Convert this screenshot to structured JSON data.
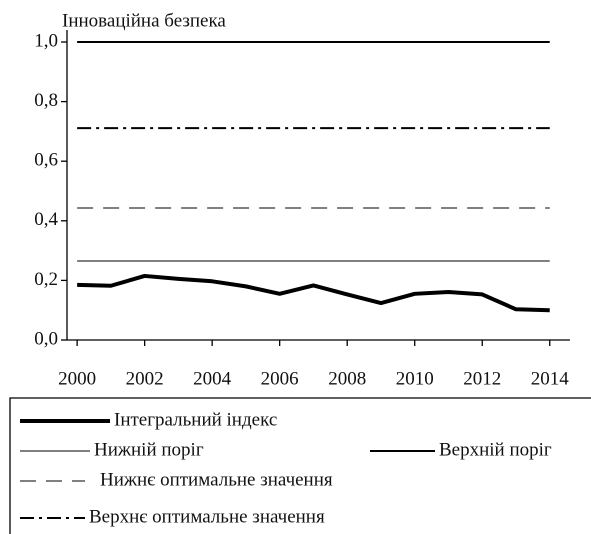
{
  "chart_data": {
    "type": "line",
    "ylabel": "Інноваційна безпека",
    "x": [
      2000,
      2001,
      2002,
      2003,
      2004,
      2005,
      2006,
      2007,
      2008,
      2009,
      2010,
      2011,
      2012,
      2013,
      2014
    ],
    "xlim": [
      1999.7,
      2014.6
    ],
    "xticks": [
      2000,
      2002,
      2004,
      2006,
      2008,
      2010,
      2012,
      2014
    ],
    "ylim": [
      0,
      1
    ],
    "yticks": [
      {
        "value": 0,
        "label": "0,0"
      },
      {
        "value": 0.2,
        "label": "0,2"
      },
      {
        "value": 0.4,
        "label": "0,4"
      },
      {
        "value": 0.6,
        "label": "0,6"
      },
      {
        "value": 0.8,
        "label": "0,8"
      },
      {
        "value": 1,
        "label": "1,0"
      }
    ],
    "series": [
      {
        "name": "Інтегральний індекс",
        "color": "#000000",
        "style": "solid",
        "linewidth": 4,
        "values": [
          0.185,
          0.182,
          0.215,
          0.205,
          0.197,
          0.18,
          0.155,
          0.183,
          0.153,
          0.124,
          0.155,
          0.161,
          0.153,
          0.103,
          0.1
        ]
      },
      {
        "name": "Нижній поріг",
        "color": "#808080",
        "style": "solid",
        "linewidth": 2,
        "values": [
          0.265,
          0.265,
          0.265,
          0.265,
          0.265,
          0.265,
          0.265,
          0.265,
          0.265,
          0.265,
          0.265,
          0.265,
          0.265,
          0.265,
          0.265
        ]
      },
      {
        "name": "Верхній поріг",
        "color": "#000000",
        "style": "solid",
        "linewidth": 2,
        "values": [
          1,
          1,
          1,
          1,
          1,
          1,
          1,
          1,
          1,
          1,
          1,
          1,
          1,
          1,
          1
        ]
      },
      {
        "name": "Нижнє оптимальне значення",
        "color": "#808080",
        "style": "dashed",
        "linewidth": 2,
        "values": [
          0.443,
          0.443,
          0.443,
          0.443,
          0.443,
          0.443,
          0.443,
          0.443,
          0.443,
          0.443,
          0.443,
          0.443,
          0.443,
          0.443,
          0.443
        ]
      },
      {
        "name": "Верхнє оптимальне значення",
        "color": "#000000",
        "style": "dashdot",
        "linewidth": 2,
        "values": [
          0.711,
          0.711,
          0.711,
          0.711,
          0.711,
          0.711,
          0.711,
          0.711,
          0.711,
          0.711,
          0.711,
          0.711,
          0.711,
          0.711,
          0.711
        ]
      }
    ]
  }
}
